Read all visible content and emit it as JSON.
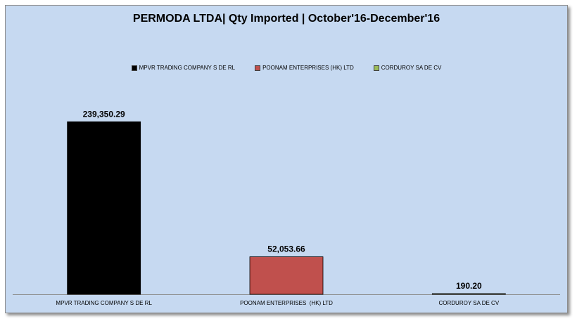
{
  "chart_data": {
    "type": "bar",
    "title": "PERMODA LTDA| Qty Imported | October'16-December'16",
    "categories": [
      "MPVR TRADING COMPANY S DE RL",
      "POONAM ENTERPRISES  (HK) LTD",
      "CORDUROY SA DE CV"
    ],
    "values": [
      239350.29,
      52053.66,
      190.2
    ],
    "data_labels": [
      "239,350.29",
      "52,053.66",
      "190.20"
    ],
    "colors": [
      "#000000",
      "#c0504d",
      "#9bbb59"
    ],
    "legend": {
      "position": "top",
      "entries": [
        "MPVR TRADING COMPANY S DE RL",
        "POONAM ENTERPRISES  (HK) LTD",
        "CORDUROY SA DE CV"
      ]
    },
    "ylim": [
      0,
      265000
    ],
    "grid": false,
    "xlabel": "",
    "ylabel": ""
  }
}
